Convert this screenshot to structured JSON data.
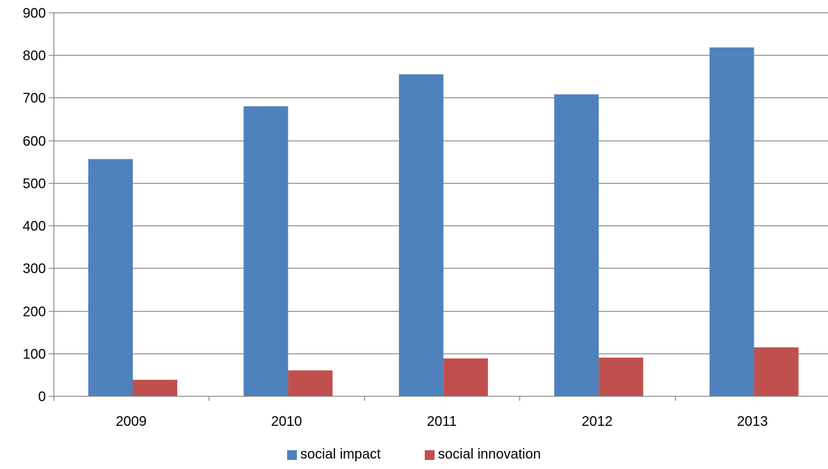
{
  "chart_data": {
    "type": "bar",
    "title": "",
    "xlabel": "",
    "ylabel": "",
    "categories": [
      "2009",
      "2010",
      "2011",
      "2012",
      "2013"
    ],
    "ylim": [
      0,
      900
    ],
    "yticks": [
      0,
      100,
      200,
      300,
      400,
      500,
      600,
      700,
      800,
      900
    ],
    "ytick_labels": [
      "0",
      "100",
      "200",
      "300",
      "400",
      "500",
      "600",
      "700",
      "800",
      "900"
    ],
    "grid": true,
    "legend_position": "bottom",
    "series": [
      {
        "name": "social impact",
        "color": "#4F81BD",
        "values": [
          556,
          680,
          755,
          708,
          818
        ]
      },
      {
        "name": "social innovation",
        "color": "#C0504D",
        "values": [
          38,
          60,
          88,
          90,
          114
        ]
      }
    ]
  }
}
